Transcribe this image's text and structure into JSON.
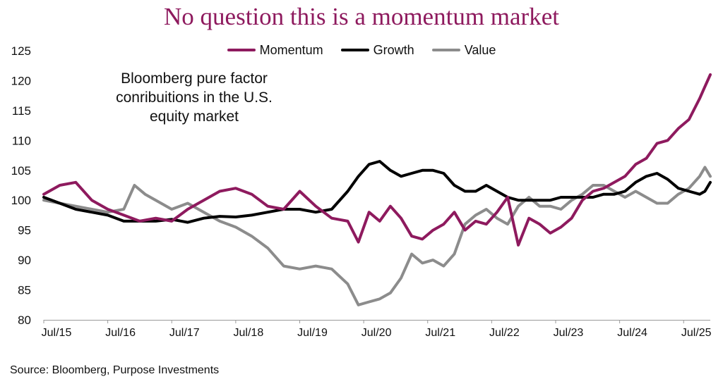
{
  "chart_data": {
    "type": "line",
    "title": "No question this is a momentum market",
    "annotation": "Bloomberg pure factor conribuitions in the U.S. equity market",
    "annotation_lines": [
      "Bloomberg pure factor",
      "conribuitions in the U.S.",
      "equity market"
    ],
    "source": "Source: Bloomberg, Purpose Investments",
    "legend": {
      "placement": "top-center"
    },
    "grid": false,
    "xlabel": "",
    "ylabel": "",
    "ylim": [
      80,
      125
    ],
    "yticks": [
      80,
      85,
      90,
      95,
      100,
      105,
      110,
      115,
      120,
      125
    ],
    "xlim": [
      "Jul/15",
      "Dec/25"
    ],
    "xticks": [
      "Jul/15",
      "Jul/16",
      "Jul/17",
      "Jul/18",
      "Jul/19",
      "Jul/20",
      "Jul/21",
      "Jul/22",
      "Jul/23",
      "Jul/24",
      "Jul/25"
    ],
    "series": [
      {
        "name": "Momentum",
        "color": "#8e1a5e",
        "points": [
          [
            "Jul/15",
            101
          ],
          [
            "Oct/15",
            102.5
          ],
          [
            "Jan/16",
            103
          ],
          [
            "Apr/16",
            100
          ],
          [
            "Jul/16",
            98.5
          ],
          [
            "Oct/16",
            97.5
          ],
          [
            "Jan/17",
            96.5
          ],
          [
            "Apr/17",
            97
          ],
          [
            "Jul/17",
            96.5
          ],
          [
            "Oct/17",
            98.5
          ],
          [
            "Jan/18",
            100
          ],
          [
            "Apr/18",
            101.5
          ],
          [
            "Jul/18",
            102
          ],
          [
            "Oct/18",
            101
          ],
          [
            "Jan/19",
            99
          ],
          [
            "Apr/19",
            98.5
          ],
          [
            "Jul/19",
            101.5
          ],
          [
            "Oct/19",
            99
          ],
          [
            "Jan/20",
            97
          ],
          [
            "Apr/20",
            96.5
          ],
          [
            "Jun/20",
            93
          ],
          [
            "Aug/20",
            98
          ],
          [
            "Oct/20",
            96.5
          ],
          [
            "Dec/20",
            99
          ],
          [
            "Feb/21",
            97
          ],
          [
            "Apr/21",
            94
          ],
          [
            "Jun/21",
            93.5
          ],
          [
            "Aug/21",
            95
          ],
          [
            "Oct/21",
            96
          ],
          [
            "Dec/21",
            98
          ],
          [
            "Feb/22",
            95
          ],
          [
            "Apr/22",
            96.5
          ],
          [
            "Jun/22",
            96
          ],
          [
            "Aug/22",
            98
          ],
          [
            "Oct/22",
            100.5
          ],
          [
            "Dec/22",
            92.5
          ],
          [
            "Feb/23",
            97
          ],
          [
            "Apr/23",
            96
          ],
          [
            "Jun/23",
            94.5
          ],
          [
            "Aug/23",
            95.5
          ],
          [
            "Oct/23",
            97
          ],
          [
            "Dec/23",
            100
          ],
          [
            "Feb/24",
            101.5
          ],
          [
            "Apr/24",
            102
          ],
          [
            "Jun/24",
            103
          ],
          [
            "Aug/24",
            104
          ],
          [
            "Oct/24",
            106
          ],
          [
            "Dec/24",
            107
          ],
          [
            "Feb/25",
            109.5
          ],
          [
            "Apr/25",
            110
          ],
          [
            "Jun/25",
            112
          ],
          [
            "Aug/25",
            113.5
          ],
          [
            "Oct/25",
            117
          ],
          [
            "Nov/25",
            119
          ],
          [
            "Dec/25",
            121
          ]
        ]
      },
      {
        "name": "Growth",
        "color": "#000000",
        "points": [
          [
            "Jul/15",
            100.5
          ],
          [
            "Oct/15",
            99.5
          ],
          [
            "Jan/16",
            98.5
          ],
          [
            "Apr/16",
            98
          ],
          [
            "Jul/16",
            97.5
          ],
          [
            "Oct/16",
            96.5
          ],
          [
            "Jan/17",
            96.5
          ],
          [
            "Apr/17",
            96.5
          ],
          [
            "Jul/17",
            96.8
          ],
          [
            "Oct/17",
            96.3
          ],
          [
            "Jan/18",
            97
          ],
          [
            "Apr/18",
            97.3
          ],
          [
            "Jul/18",
            97.2
          ],
          [
            "Oct/18",
            97.5
          ],
          [
            "Jan/19",
            98
          ],
          [
            "Apr/19",
            98.5
          ],
          [
            "Jul/19",
            98.5
          ],
          [
            "Oct/19",
            98
          ],
          [
            "Jan/20",
            98.5
          ],
          [
            "Apr/20",
            101.5
          ],
          [
            "Jun/20",
            104
          ],
          [
            "Aug/20",
            106
          ],
          [
            "Oct/20",
            106.5
          ],
          [
            "Dec/20",
            105
          ],
          [
            "Feb/21",
            104
          ],
          [
            "Apr/21",
            104.5
          ],
          [
            "Jun/21",
            105
          ],
          [
            "Aug/21",
            105
          ],
          [
            "Oct/21",
            104.5
          ],
          [
            "Dec/21",
            102.5
          ],
          [
            "Feb/22",
            101.5
          ],
          [
            "Apr/22",
            101.5
          ],
          [
            "Jun/22",
            102.5
          ],
          [
            "Aug/22",
            101.5
          ],
          [
            "Oct/22",
            100.5
          ],
          [
            "Dec/22",
            100
          ],
          [
            "Feb/23",
            100
          ],
          [
            "Apr/23",
            100
          ],
          [
            "Jun/23",
            100
          ],
          [
            "Aug/23",
            100.5
          ],
          [
            "Oct/23",
            100.5
          ],
          [
            "Dec/23",
            100.5
          ],
          [
            "Feb/24",
            100.5
          ],
          [
            "Apr/24",
            101
          ],
          [
            "Jun/24",
            101
          ],
          [
            "Aug/24",
            101.5
          ],
          [
            "Oct/24",
            103
          ],
          [
            "Dec/24",
            104
          ],
          [
            "Feb/25",
            104.5
          ],
          [
            "Apr/25",
            103.5
          ],
          [
            "Jun/25",
            102
          ],
          [
            "Aug/25",
            101.5
          ],
          [
            "Oct/25",
            101
          ],
          [
            "Nov/25",
            101.5
          ],
          [
            "Dec/25",
            103
          ]
        ]
      },
      {
        "name": "Value",
        "color": "#8c8c8c",
        "points": [
          [
            "Jul/15",
            100
          ],
          [
            "Oct/15",
            99.5
          ],
          [
            "Jan/16",
            99
          ],
          [
            "Apr/16",
            98.5
          ],
          [
            "Jul/16",
            98
          ],
          [
            "Oct/16",
            98.5
          ],
          [
            "Dec/16",
            102.5
          ],
          [
            "Feb/17",
            101
          ],
          [
            "Apr/17",
            100
          ],
          [
            "Jul/17",
            98.5
          ],
          [
            "Oct/17",
            99.5
          ],
          [
            "Jan/18",
            98
          ],
          [
            "Apr/18",
            96.5
          ],
          [
            "Jul/18",
            95.5
          ],
          [
            "Oct/18",
            94
          ],
          [
            "Jan/19",
            92
          ],
          [
            "Apr/19",
            89
          ],
          [
            "Jul/19",
            88.5
          ],
          [
            "Oct/19",
            89
          ],
          [
            "Jan/20",
            88.5
          ],
          [
            "Apr/20",
            86
          ],
          [
            "Jun/20",
            82.5
          ],
          [
            "Aug/20",
            83
          ],
          [
            "Oct/20",
            83.5
          ],
          [
            "Dec/20",
            84.5
          ],
          [
            "Feb/21",
            87
          ],
          [
            "Apr/21",
            91
          ],
          [
            "Jun/21",
            89.5
          ],
          [
            "Aug/21",
            90
          ],
          [
            "Oct/21",
            89
          ],
          [
            "Dec/21",
            91
          ],
          [
            "Feb/22",
            96
          ],
          [
            "Apr/22",
            97.5
          ],
          [
            "Jun/22",
            98.5
          ],
          [
            "Aug/22",
            97
          ],
          [
            "Oct/22",
            96
          ],
          [
            "Dec/22",
            99
          ],
          [
            "Feb/23",
            100.5
          ],
          [
            "Apr/23",
            99
          ],
          [
            "Jun/23",
            99
          ],
          [
            "Aug/23",
            98.5
          ],
          [
            "Oct/23",
            100
          ],
          [
            "Dec/23",
            101
          ],
          [
            "Feb/24",
            102.5
          ],
          [
            "Apr/24",
            102.5
          ],
          [
            "Jun/24",
            101.5
          ],
          [
            "Aug/24",
            100.5
          ],
          [
            "Oct/24",
            101.5
          ],
          [
            "Dec/24",
            100.5
          ],
          [
            "Feb/25",
            99.5
          ],
          [
            "Apr/25",
            99.5
          ],
          [
            "Jun/25",
            101
          ],
          [
            "Aug/25",
            102
          ],
          [
            "Oct/25",
            104
          ],
          [
            "Nov/25",
            105.5
          ],
          [
            "Dec/25",
            104
          ]
        ]
      }
    ]
  }
}
